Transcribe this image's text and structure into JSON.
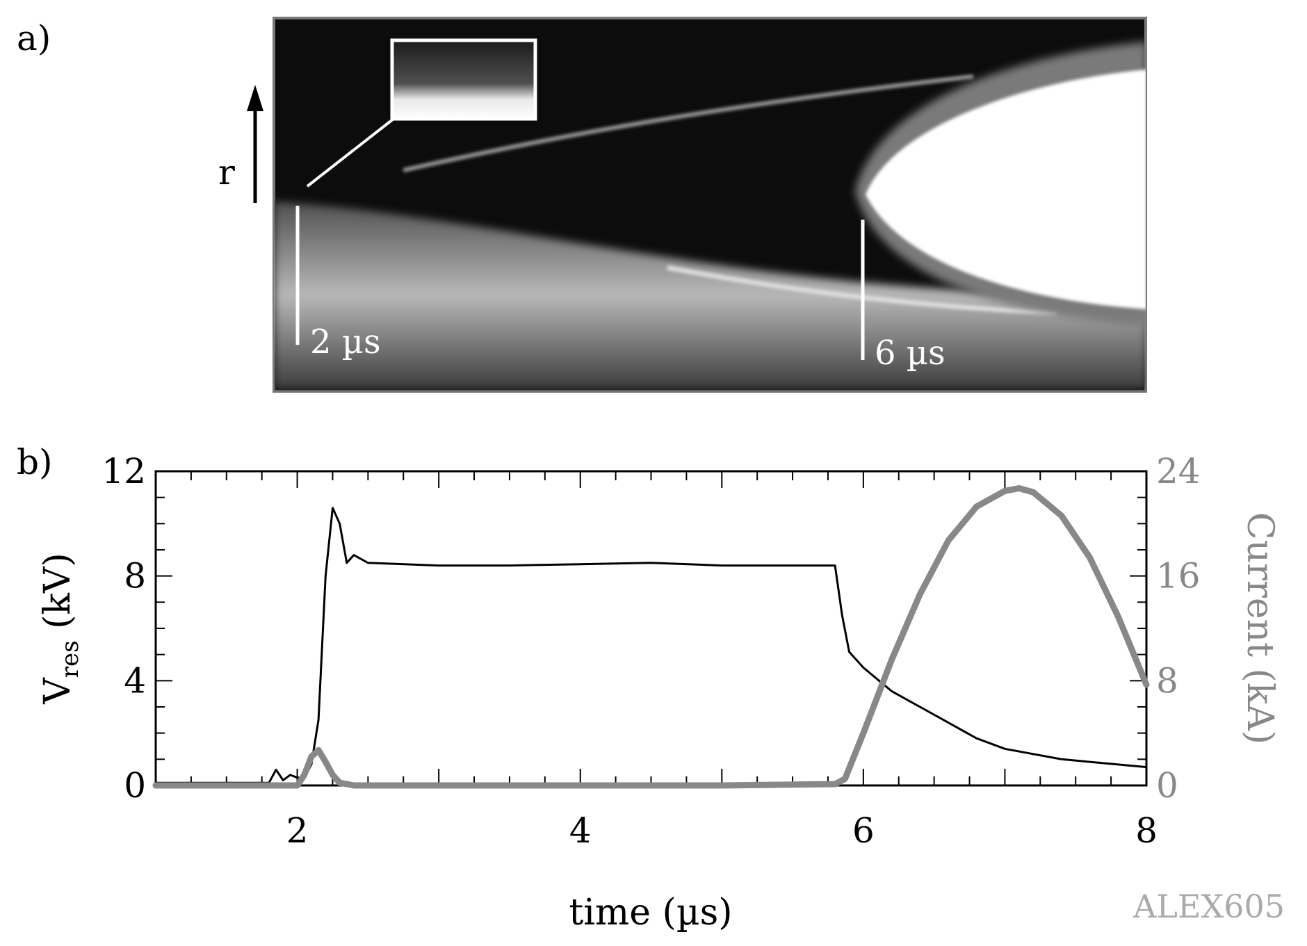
{
  "panels": {
    "a_label": "a)",
    "b_label": "b)"
  },
  "streak": {
    "r_label": "r",
    "marker_left": "2 µs",
    "marker_right": "6 µs"
  },
  "watermark": "ALEX605",
  "colors": {
    "voltage": "#000000",
    "current": "#888888",
    "watermark": "#aaaaaa"
  },
  "chart_data": {
    "type": "line",
    "xlabel": "time (µs)",
    "ylabel_left": {
      "main": "V",
      "sub": "res",
      "unit": " (kV)"
    },
    "ylabel_right": "Current (kA)",
    "xlim": [
      1,
      8
    ],
    "ylim_left": [
      0,
      12
    ],
    "ylim_right": [
      0,
      24
    ],
    "x_ticks": [
      "2",
      "4",
      "6",
      "8"
    ],
    "y_left_ticks": [
      "0",
      "4",
      "8",
      "12"
    ],
    "y_right_ticks": [
      "0",
      "8",
      "16",
      "24"
    ],
    "series": [
      {
        "axis": "left",
        "x": [
          1.0,
          1.8,
          1.85,
          1.9,
          1.95,
          2.0,
          2.05,
          2.1,
          2.15,
          2.2,
          2.25,
          2.3,
          2.35,
          2.4,
          2.5,
          3.0,
          3.5,
          4.0,
          4.5,
          5.0,
          5.5,
          5.8,
          5.85,
          5.9,
          6.0,
          6.2,
          6.4,
          6.6,
          6.8,
          7.0,
          7.2,
          7.4,
          7.6,
          7.8,
          8.0
        ],
        "values": [
          0.1,
          0.1,
          0.6,
          0.2,
          0.4,
          0.3,
          0.3,
          0.8,
          2.5,
          8.0,
          10.6,
          10.0,
          8.5,
          8.8,
          8.5,
          8.4,
          8.4,
          8.45,
          8.5,
          8.4,
          8.4,
          8.4,
          6.5,
          5.1,
          4.5,
          3.6,
          3.0,
          2.4,
          1.8,
          1.4,
          1.2,
          1.0,
          0.9,
          0.8,
          0.7
        ]
      },
      {
        "axis": "right",
        "x": [
          1.0,
          2.0,
          2.05,
          2.1,
          2.15,
          2.2,
          2.25,
          2.3,
          2.4,
          3.0,
          4.0,
          5.0,
          5.8,
          5.87,
          6.0,
          6.2,
          6.4,
          6.6,
          6.8,
          7.0,
          7.1,
          7.2,
          7.4,
          7.6,
          7.8,
          8.0
        ],
        "values": [
          0.0,
          0.0,
          0.8,
          2.2,
          2.7,
          1.8,
          0.8,
          0.2,
          0.0,
          0.0,
          0.0,
          0.0,
          0.1,
          0.5,
          4.0,
          9.6,
          14.6,
          18.7,
          21.3,
          22.5,
          22.7,
          22.4,
          20.6,
          17.4,
          12.9,
          7.7
        ]
      }
    ]
  }
}
